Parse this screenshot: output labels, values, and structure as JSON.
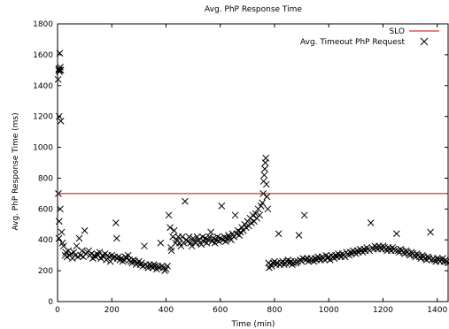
{
  "chart_data": {
    "type": "scatter",
    "title": "Avg. PhP Response Time",
    "xlabel": "Time (min)",
    "ylabel": "Avg. PhP Response Time (ms)",
    "xlim": [
      0,
      1440
    ],
    "ylim": [
      0,
      1800
    ],
    "xticks": [
      0,
      200,
      400,
      600,
      800,
      1000,
      1200,
      1400
    ],
    "yticks": [
      0,
      200,
      400,
      600,
      800,
      1000,
      1200,
      1400,
      1600,
      1800
    ],
    "grid": false,
    "legend_position": "top-right",
    "series": [
      {
        "name": "SLO",
        "kind": "line",
        "color": "#cc0000",
        "x": [
          0,
          1440
        ],
        "y": [
          700,
          700
        ]
      },
      {
        "name": "Avg. Timeout PhP Request",
        "kind": "scatter",
        "marker": "x",
        "color": "#000000",
        "points": [
          [
            2,
            1440
          ],
          [
            4,
            1500
          ],
          [
            5,
            1510
          ],
          [
            7,
            1490
          ],
          [
            9,
            1500
          ],
          [
            10,
            1520
          ],
          [
            12,
            1500
          ],
          [
            8,
            1610
          ],
          [
            12,
            1170
          ],
          [
            6,
            1200
          ],
          [
            3,
            700
          ],
          [
            6,
            520
          ],
          [
            10,
            600
          ],
          [
            5,
            410
          ],
          [
            15,
            450
          ],
          [
            18,
            380
          ],
          [
            22,
            360
          ],
          [
            30,
            320
          ],
          [
            28,
            300
          ],
          [
            35,
            290
          ],
          [
            40,
            330
          ],
          [
            45,
            300
          ],
          [
            50,
            310
          ],
          [
            55,
            280
          ],
          [
            60,
            320
          ],
          [
            65,
            300
          ],
          [
            70,
            360
          ],
          [
            75,
            290
          ],
          [
            80,
            410
          ],
          [
            85,
            300
          ],
          [
            90,
            330
          ],
          [
            95,
            290
          ],
          [
            100,
            460
          ],
          [
            105,
            310
          ],
          [
            110,
            320
          ],
          [
            115,
            330
          ],
          [
            120,
            300
          ],
          [
            125,
            310
          ],
          [
            130,
            280
          ],
          [
            135,
            300
          ],
          [
            140,
            290
          ],
          [
            145,
            310
          ],
          [
            150,
            300
          ],
          [
            155,
            320
          ],
          [
            160,
            280
          ],
          [
            165,
            300
          ],
          [
            170,
            290
          ],
          [
            175,
            310
          ],
          [
            180,
            270
          ],
          [
            185,
            300
          ],
          [
            190,
            290
          ],
          [
            195,
            260
          ],
          [
            200,
            300
          ],
          [
            205,
            280
          ],
          [
            210,
            290
          ],
          [
            215,
            510
          ],
          [
            218,
            410
          ],
          [
            220,
            280
          ],
          [
            225,
            290
          ],
          [
            230,
            270
          ],
          [
            235,
            280
          ],
          [
            240,
            260
          ],
          [
            245,
            270
          ],
          [
            250,
            290
          ],
          [
            255,
            280
          ],
          [
            260,
            300
          ],
          [
            265,
            270
          ],
          [
            270,
            260
          ],
          [
            275,
            250
          ],
          [
            280,
            270
          ],
          [
            285,
            260
          ],
          [
            290,
            240
          ],
          [
            295,
            250
          ],
          [
            300,
            260
          ],
          [
            305,
            240
          ],
          [
            310,
            250
          ],
          [
            315,
            230
          ],
          [
            320,
            360
          ],
          [
            325,
            240
          ],
          [
            330,
            230
          ],
          [
            335,
            220
          ],
          [
            340,
            240
          ],
          [
            345,
            230
          ],
          [
            350,
            220
          ],
          [
            355,
            240
          ],
          [
            360,
            230
          ],
          [
            365,
            210
          ],
          [
            370,
            230
          ],
          [
            375,
            220
          ],
          [
            380,
            380
          ],
          [
            385,
            230
          ],
          [
            390,
            220
          ],
          [
            395,
            200
          ],
          [
            400,
            210
          ],
          [
            405,
            230
          ],
          [
            410,
            560
          ],
          [
            415,
            480
          ],
          [
            418,
            350
          ],
          [
            420,
            330
          ],
          [
            425,
            420
          ],
          [
            430,
            460
          ],
          [
            435,
            380
          ],
          [
            440,
            400
          ],
          [
            445,
            420
          ],
          [
            450,
            380
          ],
          [
            455,
            360
          ],
          [
            460,
            420
          ],
          [
            465,
            380
          ],
          [
            470,
            650
          ],
          [
            475,
            400
          ],
          [
            480,
            390
          ],
          [
            485,
            420
          ],
          [
            490,
            380
          ],
          [
            495,
            360
          ],
          [
            500,
            410
          ],
          [
            505,
            390
          ],
          [
            510,
            380
          ],
          [
            515,
            420
          ],
          [
            520,
            400
          ],
          [
            525,
            380
          ],
          [
            530,
            370
          ],
          [
            535,
            420
          ],
          [
            540,
            390
          ],
          [
            545,
            410
          ],
          [
            550,
            380
          ],
          [
            555,
            400
          ],
          [
            560,
            420
          ],
          [
            565,
            450
          ],
          [
            570,
            390
          ],
          [
            575,
            410
          ],
          [
            580,
            380
          ],
          [
            585,
            400
          ],
          [
            590,
            420
          ],
          [
            595,
            390
          ],
          [
            600,
            410
          ],
          [
            605,
            620
          ],
          [
            610,
            400
          ],
          [
            615,
            420
          ],
          [
            620,
            390
          ],
          [
            625,
            410
          ],
          [
            630,
            430
          ],
          [
            635,
            410
          ],
          [
            640,
            400
          ],
          [
            645,
            440
          ],
          [
            650,
            420
          ],
          [
            655,
            560
          ],
          [
            660,
            440
          ],
          [
            665,
            460
          ],
          [
            670,
            430
          ],
          [
            675,
            450
          ],
          [
            680,
            480
          ],
          [
            685,
            460
          ],
          [
            690,
            500
          ],
          [
            695,
            480
          ],
          [
            700,
            520
          ],
          [
            705,
            490
          ],
          [
            710,
            540
          ],
          [
            715,
            510
          ],
          [
            720,
            560
          ],
          [
            725,
            520
          ],
          [
            730,
            570
          ],
          [
            735,
            540
          ],
          [
            740,
            600
          ],
          [
            745,
            560
          ],
          [
            750,
            620
          ],
          [
            755,
            640
          ],
          [
            758,
            700
          ],
          [
            760,
            780
          ],
          [
            762,
            820
          ],
          [
            764,
            860
          ],
          [
            766,
            900
          ],
          [
            768,
            930
          ],
          [
            770,
            760
          ],
          [
            772,
            680
          ],
          [
            775,
            600
          ],
          [
            778,
            250
          ],
          [
            780,
            220
          ],
          [
            785,
            240
          ],
          [
            790,
            230
          ],
          [
            795,
            250
          ],
          [
            800,
            260
          ],
          [
            805,
            240
          ],
          [
            810,
            250
          ],
          [
            815,
            440
          ],
          [
            820,
            240
          ],
          [
            825,
            250
          ],
          [
            830,
            260
          ],
          [
            835,
            240
          ],
          [
            840,
            250
          ],
          [
            845,
            260
          ],
          [
            850,
            270
          ],
          [
            855,
            250
          ],
          [
            860,
            260
          ],
          [
            865,
            240
          ],
          [
            870,
            250
          ],
          [
            875,
            260
          ],
          [
            880,
            250
          ],
          [
            885,
            260
          ],
          [
            890,
            430
          ],
          [
            895,
            270
          ],
          [
            900,
            260
          ],
          [
            905,
            280
          ],
          [
            910,
            560
          ],
          [
            915,
            270
          ],
          [
            920,
            280
          ],
          [
            925,
            260
          ],
          [
            930,
            270
          ],
          [
            935,
            280
          ],
          [
            940,
            270
          ],
          [
            945,
            260
          ],
          [
            950,
            280
          ],
          [
            955,
            270
          ],
          [
            960,
            290
          ],
          [
            965,
            280
          ],
          [
            970,
            270
          ],
          [
            975,
            290
          ],
          [
            980,
            280
          ],
          [
            985,
            270
          ],
          [
            990,
            300
          ],
          [
            995,
            280
          ],
          [
            1000,
            290
          ],
          [
            1005,
            270
          ],
          [
            1010,
            300
          ],
          [
            1015,
            290
          ],
          [
            1020,
            280
          ],
          [
            1025,
            300
          ],
          [
            1030,
            290
          ],
          [
            1035,
            310
          ],
          [
            1040,
            300
          ],
          [
            1045,
            290
          ],
          [
            1050,
            310
          ],
          [
            1055,
            300
          ],
          [
            1060,
            290
          ],
          [
            1065,
            320
          ],
          [
            1070,
            310
          ],
          [
            1075,
            300
          ],
          [
            1080,
            320
          ],
          [
            1085,
            310
          ],
          [
            1090,
            330
          ],
          [
            1095,
            320
          ],
          [
            1100,
            310
          ],
          [
            1105,
            330
          ],
          [
            1110,
            320
          ],
          [
            1115,
            340
          ],
          [
            1120,
            330
          ],
          [
            1125,
            320
          ],
          [
            1130,
            340
          ],
          [
            1135,
            330
          ],
          [
            1140,
            350
          ],
          [
            1145,
            340
          ],
          [
            1150,
            330
          ],
          [
            1155,
            510
          ],
          [
            1160,
            350
          ],
          [
            1165,
            340
          ],
          [
            1170,
            360
          ],
          [
            1175,
            350
          ],
          [
            1180,
            340
          ],
          [
            1185,
            360
          ],
          [
            1190,
            350
          ],
          [
            1195,
            340
          ],
          [
            1200,
            360
          ],
          [
            1205,
            350
          ],
          [
            1210,
            340
          ],
          [
            1215,
            330
          ],
          [
            1220,
            350
          ],
          [
            1225,
            340
          ],
          [
            1230,
            330
          ],
          [
            1235,
            350
          ],
          [
            1240,
            340
          ],
          [
            1245,
            330
          ],
          [
            1250,
            440
          ],
          [
            1255,
            330
          ],
          [
            1260,
            320
          ],
          [
            1265,
            340
          ],
          [
            1270,
            330
          ],
          [
            1275,
            320
          ],
          [
            1280,
            310
          ],
          [
            1285,
            330
          ],
          [
            1290,
            320
          ],
          [
            1295,
            310
          ],
          [
            1300,
            300
          ],
          [
            1305,
            320
          ],
          [
            1310,
            310
          ],
          [
            1315,
            300
          ],
          [
            1320,
            290
          ],
          [
            1325,
            310
          ],
          [
            1330,
            300
          ],
          [
            1335,
            290
          ],
          [
            1340,
            280
          ],
          [
            1345,
            300
          ],
          [
            1350,
            290
          ],
          [
            1355,
            280
          ],
          [
            1360,
            270
          ],
          [
            1365,
            290
          ],
          [
            1370,
            280
          ],
          [
            1375,
            450
          ],
          [
            1380,
            270
          ],
          [
            1385,
            280
          ],
          [
            1390,
            270
          ],
          [
            1395,
            260
          ],
          [
            1400,
            280
          ],
          [
            1405,
            270
          ],
          [
            1410,
            260
          ],
          [
            1415,
            270
          ],
          [
            1420,
            280
          ],
          [
            1425,
            260
          ],
          [
            1430,
            270
          ],
          [
            1435,
            260
          ],
          [
            1440,
            250
          ]
        ]
      }
    ]
  }
}
